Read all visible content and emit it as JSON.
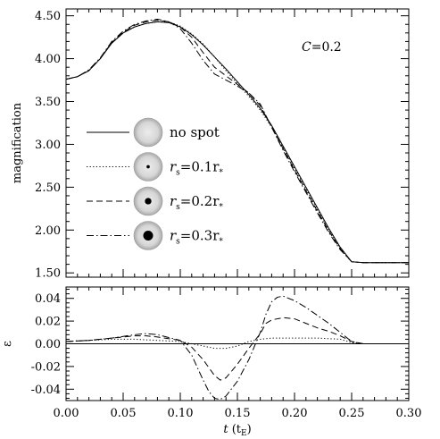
{
  "chart_data": [
    {
      "type": "line",
      "panel": "top",
      "ylabel": "magnification",
      "xlim": [
        0.0,
        0.3
      ],
      "ylim": [
        1.45,
        4.58
      ],
      "yticks": [
        1.5,
        2.0,
        2.5,
        3.0,
        3.5,
        4.0,
        4.5
      ],
      "ytick_labels": [
        "1.50",
        "2.00",
        "2.50",
        "3.00",
        "3.50",
        "4.00",
        "4.50"
      ],
      "annotation": {
        "prefix": "C",
        "text": "=0.2"
      },
      "legend": {
        "placement": "left",
        "entries": [
          {
            "label": "no spot",
            "linestyle": "solid",
            "spot": 0
          },
          {
            "label": "r",
            "sub1": "s",
            "mid": "=0.1r",
            "sub2": "*",
            "linestyle": "dotted",
            "spot": 0.1
          },
          {
            "label": "r",
            "sub1": "s",
            "mid": "=0.2r",
            "sub2": "*",
            "linestyle": "dashed",
            "spot": 0.2
          },
          {
            "label": "r",
            "sub1": "s",
            "mid": "=0.3r",
            "sub2": "*",
            "linestyle": "dashdot",
            "spot": 0.3
          }
        ]
      },
      "series": [
        {
          "linestyle": "solid",
          "x": [
            0.0,
            0.01,
            0.02,
            0.03,
            0.04,
            0.05,
            0.06,
            0.07,
            0.08,
            0.09,
            0.1,
            0.11,
            0.12,
            0.13,
            0.14,
            0.15,
            0.16,
            0.17,
            0.18,
            0.19,
            0.2,
            0.21,
            0.22,
            0.23,
            0.24,
            0.25,
            0.26,
            0.27,
            0.28,
            0.29,
            0.3
          ],
          "y": [
            3.76,
            3.79,
            3.86,
            4.0,
            4.18,
            4.3,
            4.37,
            4.41,
            4.43,
            4.42,
            4.37,
            4.28,
            4.16,
            4.02,
            3.88,
            3.73,
            3.58,
            3.42,
            3.22,
            2.98,
            2.74,
            2.5,
            2.26,
            2.02,
            1.8,
            1.63,
            1.62,
            1.62,
            1.62,
            1.62,
            1.62
          ]
        },
        {
          "linestyle": "dotted",
          "x": [
            0.0,
            0.01,
            0.02,
            0.03,
            0.04,
            0.05,
            0.06,
            0.07,
            0.08,
            0.09,
            0.1,
            0.11,
            0.12,
            0.13,
            0.14,
            0.15,
            0.16,
            0.17,
            0.18,
            0.19,
            0.2,
            0.21,
            0.22,
            0.23,
            0.24,
            0.25,
            0.26,
            0.27,
            0.28,
            0.29,
            0.3
          ],
          "y": [
            3.76,
            3.79,
            3.86,
            4.0,
            4.18,
            4.3,
            4.37,
            4.41,
            4.43,
            4.43,
            4.38,
            4.29,
            4.17,
            4.02,
            3.86,
            3.71,
            3.56,
            3.4,
            3.2,
            2.96,
            2.72,
            2.48,
            2.24,
            2.0,
            1.79,
            1.63,
            1.62,
            1.62,
            1.62,
            1.62,
            1.62
          ]
        },
        {
          "linestyle": "dashed",
          "x": [
            0.0,
            0.01,
            0.02,
            0.03,
            0.04,
            0.05,
            0.06,
            0.07,
            0.08,
            0.09,
            0.1,
            0.11,
            0.12,
            0.13,
            0.14,
            0.15,
            0.16,
            0.17,
            0.18,
            0.19,
            0.2,
            0.21,
            0.22,
            0.23,
            0.24,
            0.25,
            0.26,
            0.27,
            0.28,
            0.29,
            0.3
          ],
          "y": [
            3.76,
            3.79,
            3.86,
            4.0,
            4.19,
            4.31,
            4.39,
            4.43,
            4.45,
            4.43,
            4.37,
            4.25,
            4.07,
            3.9,
            3.8,
            3.7,
            3.6,
            3.45,
            3.2,
            2.95,
            2.7,
            2.46,
            2.22,
            1.99,
            1.78,
            1.63,
            1.62,
            1.62,
            1.62,
            1.62,
            1.62
          ]
        },
        {
          "linestyle": "dashdot",
          "x": [
            0.0,
            0.01,
            0.02,
            0.03,
            0.04,
            0.05,
            0.06,
            0.07,
            0.08,
            0.09,
            0.1,
            0.11,
            0.12,
            0.13,
            0.14,
            0.15,
            0.16,
            0.17,
            0.18,
            0.19,
            0.2,
            0.21,
            0.22,
            0.23,
            0.24,
            0.25,
            0.26,
            0.27,
            0.28,
            0.29,
            0.3
          ],
          "y": [
            3.76,
            3.79,
            3.87,
            4.01,
            4.2,
            4.32,
            4.4,
            4.44,
            4.46,
            4.43,
            4.35,
            4.18,
            3.98,
            3.82,
            3.75,
            3.68,
            3.6,
            3.47,
            3.2,
            2.93,
            2.68,
            2.44,
            2.2,
            1.97,
            1.77,
            1.63,
            1.62,
            1.62,
            1.62,
            1.62,
            1.62
          ]
        }
      ]
    },
    {
      "type": "line",
      "panel": "bottom",
      "xlabel": "t",
      "xlabel_unit": {
        "open": " (t",
        "sub": "E",
        "close": ")"
      },
      "ylabel": "ε",
      "xlim": [
        0.0,
        0.3
      ],
      "ylim": [
        -0.05,
        0.05
      ],
      "xticks": [
        0.0,
        0.05,
        0.1,
        0.15,
        0.2,
        0.25,
        0.3
      ],
      "xtick_labels": [
        "0.00",
        "0.05",
        "0.10",
        "0.15",
        "0.20",
        "0.25",
        "0.30"
      ],
      "yticks": [
        -0.04,
        -0.02,
        0.0,
        0.02,
        0.04
      ],
      "ytick_labels": [
        "-0.04",
        "-0.02",
        "0.00",
        "0.02",
        "0.04"
      ],
      "series": [
        {
          "linestyle": "solid",
          "x": [
            0.0,
            0.3
          ],
          "y": [
            0.0,
            0.0
          ]
        },
        {
          "linestyle": "dotted",
          "x": [
            0.0,
            0.02,
            0.04,
            0.06,
            0.08,
            0.1,
            0.11,
            0.12,
            0.13,
            0.14,
            0.15,
            0.16,
            0.17,
            0.18,
            0.2,
            0.22,
            0.24,
            0.25,
            0.26,
            0.28,
            0.3
          ],
          "y": [
            0.002,
            0.003,
            0.004,
            0.004,
            0.003,
            0.002,
            0.0,
            -0.002,
            -0.004,
            -0.004,
            -0.002,
            0.002,
            0.004,
            0.005,
            0.005,
            0.005,
            0.004,
            0.001,
            0.0,
            0.0,
            0.0
          ]
        },
        {
          "linestyle": "dashed",
          "x": [
            0.0,
            0.02,
            0.04,
            0.06,
            0.07,
            0.08,
            0.1,
            0.11,
            0.12,
            0.13,
            0.135,
            0.14,
            0.15,
            0.16,
            0.17,
            0.175,
            0.18,
            0.19,
            0.2,
            0.21,
            0.22,
            0.23,
            0.24,
            0.25,
            0.26,
            0.28,
            0.3
          ],
          "y": [
            0.002,
            0.003,
            0.005,
            0.007,
            0.007,
            0.006,
            0.003,
            -0.003,
            -0.014,
            -0.028,
            -0.032,
            -0.03,
            -0.018,
            -0.004,
            0.009,
            0.018,
            0.021,
            0.023,
            0.022,
            0.018,
            0.014,
            0.011,
            0.007,
            0.002,
            0.0,
            0.0,
            0.0
          ]
        },
        {
          "linestyle": "dashdot",
          "x": [
            0.0,
            0.02,
            0.04,
            0.06,
            0.07,
            0.08,
            0.1,
            0.11,
            0.12,
            0.125,
            0.13,
            0.135,
            0.14,
            0.15,
            0.16,
            0.17,
            0.175,
            0.18,
            0.185,
            0.19,
            0.2,
            0.21,
            0.22,
            0.23,
            0.24,
            0.25,
            0.26,
            0.28,
            0.3
          ],
          "y": [
            0.002,
            0.003,
            0.005,
            0.008,
            0.009,
            0.008,
            0.003,
            -0.01,
            -0.032,
            -0.042,
            -0.048,
            -0.049,
            -0.046,
            -0.033,
            -0.014,
            0.01,
            0.026,
            0.037,
            0.041,
            0.042,
            0.038,
            0.032,
            0.025,
            0.018,
            0.01,
            0.002,
            0.0,
            0.0,
            0.0
          ]
        }
      ]
    }
  ]
}
